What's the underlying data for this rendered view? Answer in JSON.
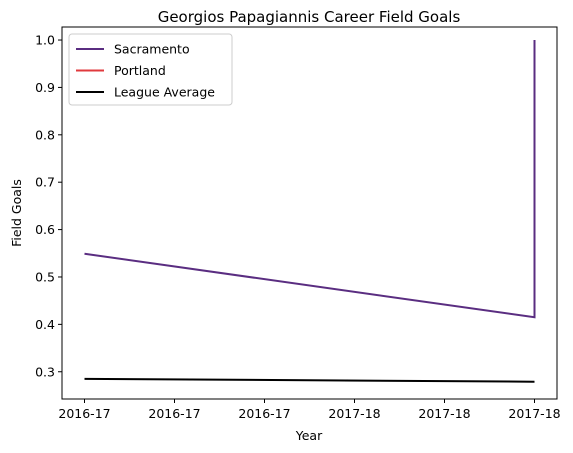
{
  "chart_data": {
    "type": "line",
    "title": "Georgios Papagiannis Career Field Goals",
    "xlabel": "Year",
    "ylabel": "Field Goals",
    "x_tick_labels": [
      "2016-17",
      "2016-17",
      "2016-17",
      "2017-18",
      "2017-18",
      "2017-18"
    ],
    "y_ticks": [
      0.3,
      0.4,
      0.5,
      0.6,
      0.7,
      0.8,
      0.9,
      1.0
    ],
    "y_tick_labels": [
      "0.3",
      "0.4",
      "0.5",
      "0.6",
      "0.7",
      "0.8",
      "0.9",
      "1.0"
    ],
    "xlim": [
      -0.25,
      5.25
    ],
    "ylim": [
      0.2425,
      1.0275
    ],
    "grid": false,
    "legend_position": "top-left",
    "series": [
      {
        "name": "Sacramento",
        "color": "#5a2d81",
        "x": [
          0,
          5,
          5
        ],
        "y": [
          0.549,
          0.415,
          1.0
        ]
      },
      {
        "name": "Portland",
        "color": "#e03a3e",
        "x": [],
        "y": []
      },
      {
        "name": "League Average",
        "color": "#000000",
        "x": [
          0,
          5
        ],
        "y": [
          0.285,
          0.279
        ]
      }
    ]
  }
}
